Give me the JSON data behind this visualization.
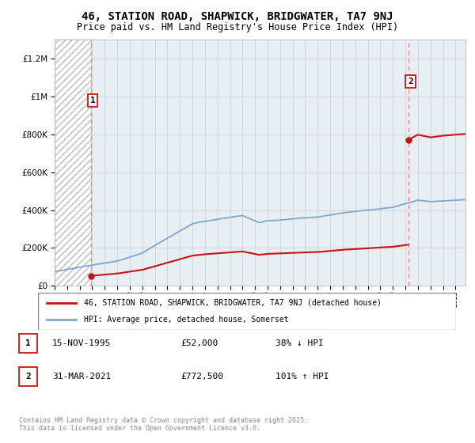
{
  "title": "46, STATION ROAD, SHAPWICK, BRIDGWATER, TA7 9NJ",
  "subtitle": "Price paid vs. HM Land Registry's House Price Index (HPI)",
  "title_fontsize": 10,
  "subtitle_fontsize": 8.5,
  "ylabel_ticks": [
    "£0",
    "£200K",
    "£400K",
    "£600K",
    "£800K",
    "£1M",
    "£1.2M"
  ],
  "ytick_values": [
    0,
    200000,
    400000,
    600000,
    800000,
    1000000,
    1200000
  ],
  "ylim": [
    0,
    1300000
  ],
  "xlim_start": 1993.0,
  "xlim_end": 2025.8,
  "hpi_color": "#7aa8d2",
  "price_color": "#cc1111",
  "dashed_vline_color": "#ff8888",
  "sale1_x": 1995.88,
  "sale1_y": 52000,
  "sale1_label": "1",
  "sale1_date": "15-NOV-1995",
  "sale1_price": "£52,000",
  "sale1_pct": "38% ↓ HPI",
  "sale2_x": 2021.25,
  "sale2_y": 772500,
  "sale2_label": "2",
  "sale2_date": "31-MAR-2021",
  "sale2_price": "£772,500",
  "sale2_pct": "101% ↑ HPI",
  "legend_line1": "46, STATION ROAD, SHAPWICK, BRIDGWATER, TA7 9NJ (detached house)",
  "legend_line2": "HPI: Average price, detached house, Somerset",
  "footer": "Contains HM Land Registry data © Crown copyright and database right 2025.\nThis data is licensed under the Open Government Licence v3.0.",
  "hatch_color": "#bbbbbb",
  "grid_color": "#cccccc",
  "bg_color": "#ffffff",
  "plot_bg_color": "#e8eef5"
}
